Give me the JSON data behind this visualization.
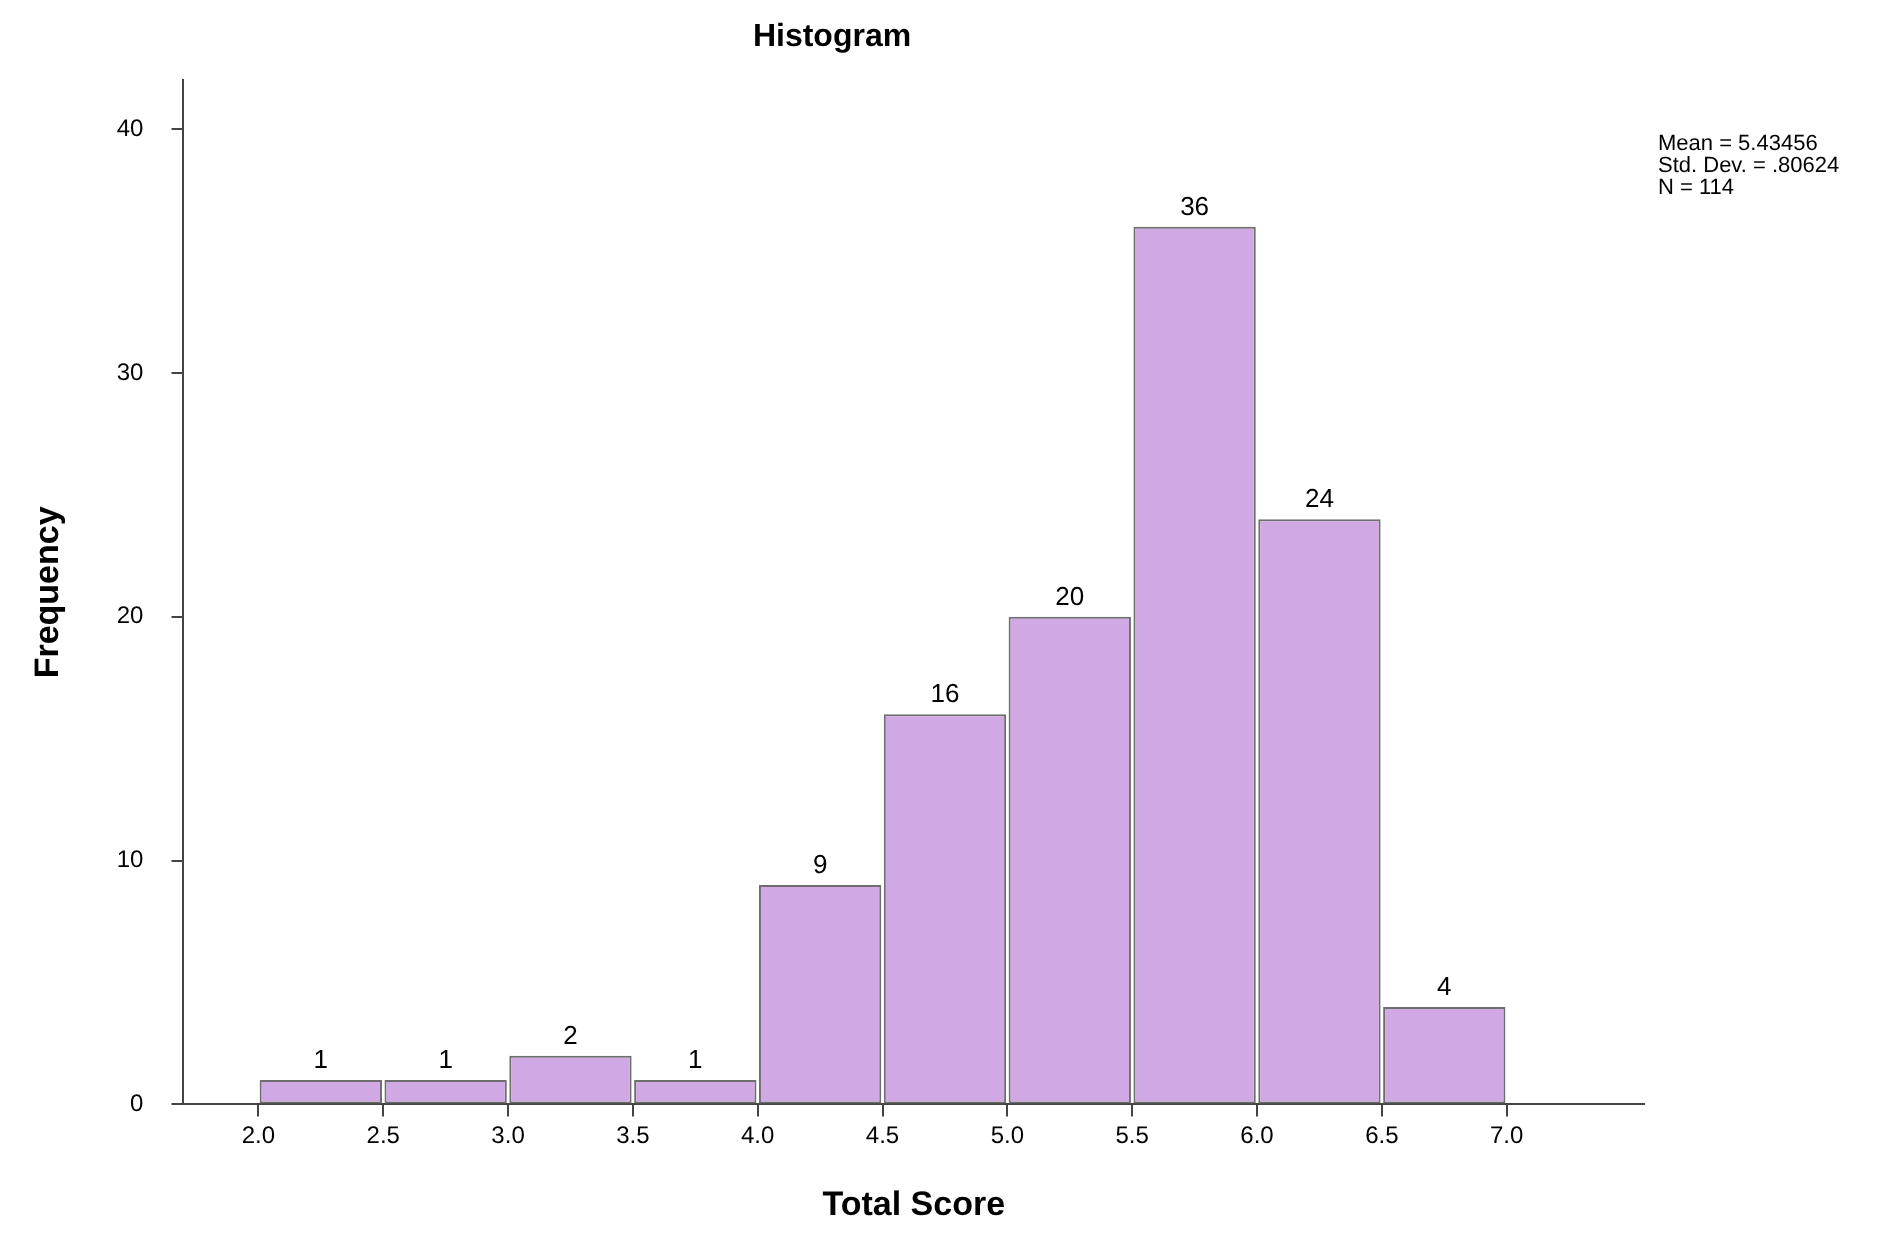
{
  "chart_data": {
    "type": "histogram",
    "title": "Histogram",
    "xlabel": "Total Score",
    "ylabel": "Frequency",
    "bins": [
      2.0,
      2.5,
      3.0,
      3.5,
      4.0,
      4.5,
      5.0,
      5.5,
      6.0,
      6.5,
      7.0
    ],
    "values": [
      1,
      1,
      2,
      1,
      9,
      16,
      20,
      36,
      24,
      4
    ],
    "color": "#d0a8e4",
    "xlim": [
      1.7,
      7.55
    ],
    "xticks": [
      {
        "value": 2,
        "label": "2.0"
      },
      2.5,
      {
        "value": 3,
        "label": "3.0"
      },
      3.5,
      {
        "value": 4,
        "label": "4.0"
      },
      4.5,
      {
        "value": 5,
        "label": "5.0"
      },
      5.5,
      {
        "value": 6,
        "label": "6.0"
      },
      6.5,
      {
        "value": 7,
        "label": "7.0"
      }
    ],
    "ylim": [
      0,
      42
    ],
    "yticks": [
      0,
      10,
      20,
      30,
      40
    ],
    "grid": false,
    "legend": false,
    "data_labels": true,
    "annotations": [
      "Mean = 5.43456",
      "Std. Dev. = .80624",
      "N = 114"
    ]
  }
}
